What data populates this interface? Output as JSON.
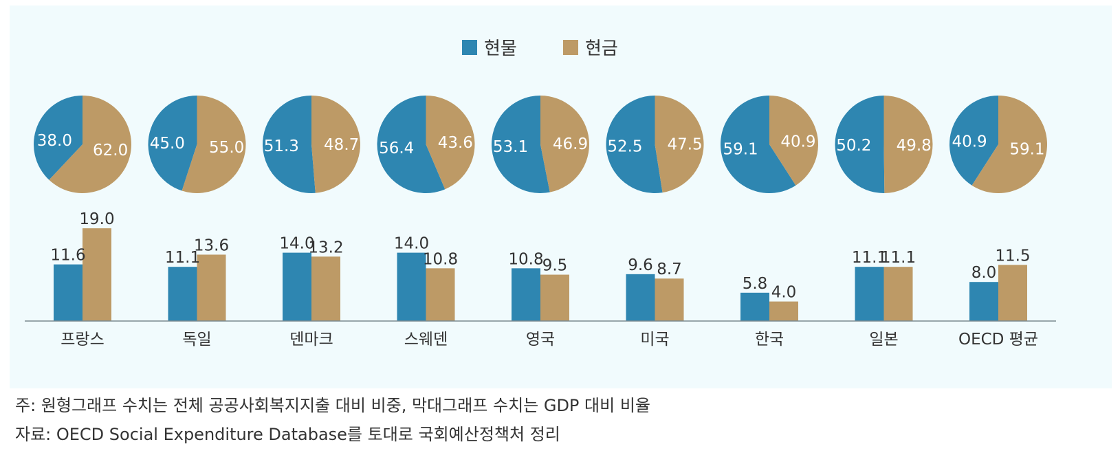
{
  "chart_data": {
    "type": "bar",
    "legend": [
      {
        "name": "현물",
        "color": "#2e86b1"
      },
      {
        "name": "현금",
        "color": "#bd9a66"
      }
    ],
    "legend_placement": "top-center",
    "categories": [
      "프랑스",
      "독일",
      "덴마크",
      "스웨덴",
      "영국",
      "미국",
      "한국",
      "일본",
      "OECD 평균"
    ],
    "pie_series": [
      {
        "name": "현물",
        "values": [
          38.0,
          45.0,
          51.3,
          56.4,
          53.1,
          52.5,
          59.1,
          50.2,
          40.9
        ]
      },
      {
        "name": "현금",
        "values": [
          62.0,
          55.0,
          48.7,
          43.6,
          46.9,
          47.5,
          40.9,
          49.8,
          59.1
        ]
      }
    ],
    "bar_series": [
      {
        "name": "현물",
        "values": [
          11.6,
          11.1,
          14.0,
          14.0,
          10.8,
          9.6,
          5.8,
          11.1,
          8.0
        ]
      },
      {
        "name": "현금",
        "values": [
          19.0,
          13.6,
          13.2,
          10.8,
          9.5,
          8.7,
          4.0,
          11.1,
          11.5
        ]
      }
    ],
    "value_labels": {
      "pie": [
        [
          "38.0",
          "62.0"
        ],
        [
          "45.0",
          "55.0"
        ],
        [
          "51.3",
          "48.7"
        ],
        [
          "56.4",
          "43.6"
        ],
        [
          "53.1",
          "46.9"
        ],
        [
          "52.5",
          "47.5"
        ],
        [
          "59.1",
          "40.9"
        ],
        [
          "50.2",
          "49.8"
        ],
        [
          "40.9",
          "59.1"
        ]
      ],
      "bar": [
        [
          "11.6",
          "19.0"
        ],
        [
          "11.1",
          "13.6"
        ],
        [
          "14.0",
          "13.2"
        ],
        [
          "14.0",
          "10.8"
        ],
        [
          "10.8",
          "9.5"
        ],
        [
          "9.6",
          "8.7"
        ],
        [
          "5.8",
          "4.0"
        ],
        [
          "11.1",
          "11.1"
        ],
        [
          "8.0",
          "11.5"
        ]
      ]
    },
    "ylim": [
      0,
      20
    ],
    "grid": false
  },
  "notes": {
    "note1": "주: 원형그래프 수치는 전체 공공사회복지지출 대비 비중, 막대그래프 수치는 GDP 대비 비율",
    "note2": "자료: OECD Social Expenditure Database를 토대로 국회예산정책처 정리"
  }
}
